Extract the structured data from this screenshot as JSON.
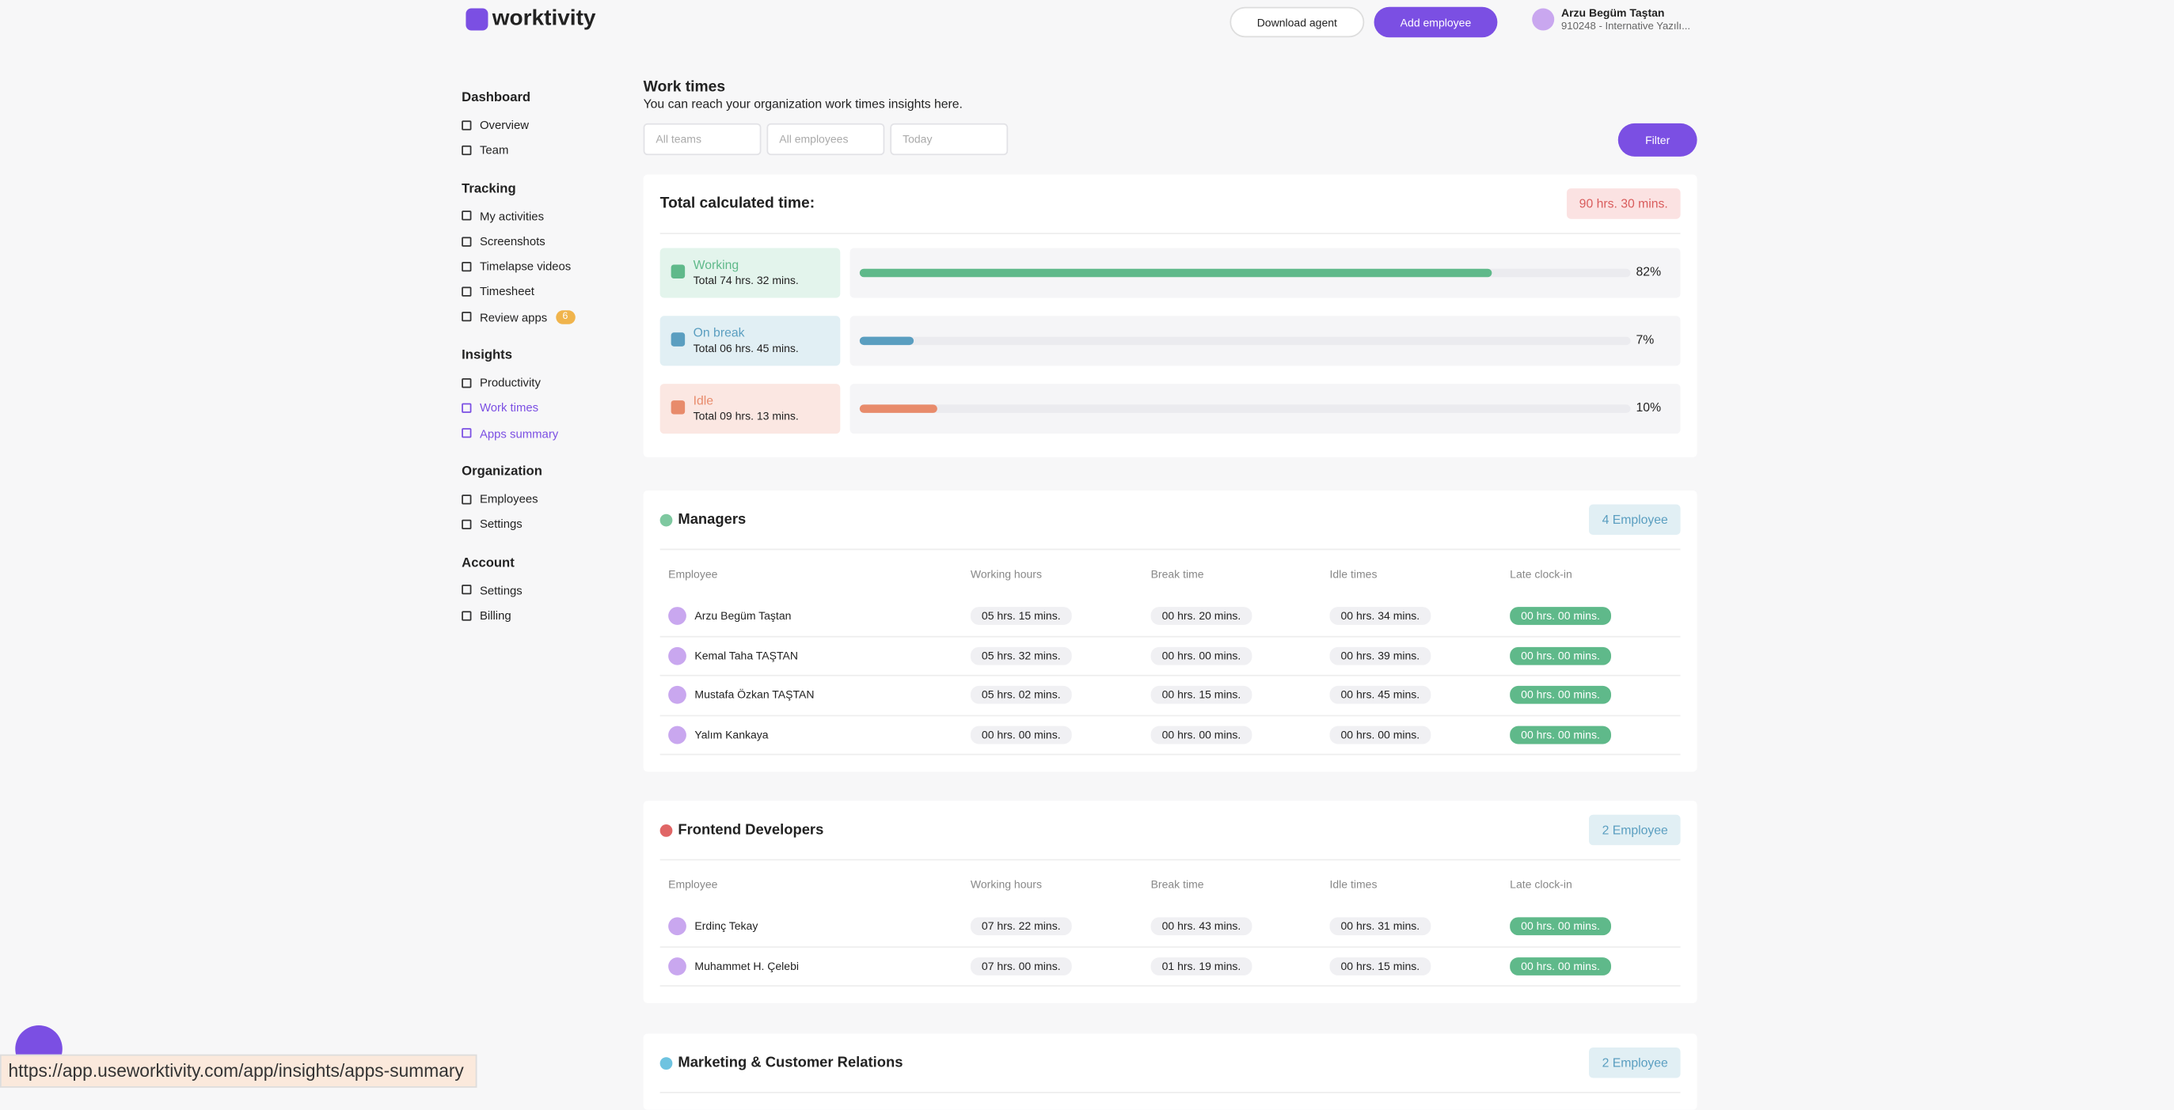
{
  "header": {
    "logo": "worktivity",
    "download": "Download agent",
    "add": "Add employee",
    "user_name": "Arzu Begüm Taştan",
    "user_org": "910248 - Internative Yazılı..."
  },
  "sidebar": [
    {
      "title": "Dashboard",
      "items": [
        {
          "label": "Overview"
        },
        {
          "label": "Team"
        }
      ]
    },
    {
      "title": "Tracking",
      "items": [
        {
          "label": "My activities"
        },
        {
          "label": "Screenshots"
        },
        {
          "label": "Timelapse videos"
        },
        {
          "label": "Timesheet"
        },
        {
          "label": "Review apps",
          "badge": "6"
        }
      ]
    },
    {
      "title": "Insights",
      "items": [
        {
          "label": "Productivity"
        },
        {
          "label": "Work times",
          "active": true
        },
        {
          "label": "Apps summary",
          "active": true
        }
      ]
    },
    {
      "title": "Organization",
      "items": [
        {
          "label": "Employees"
        },
        {
          "label": "Settings"
        }
      ]
    },
    {
      "title": "Account",
      "items": [
        {
          "label": "Settings"
        },
        {
          "label": "Billing"
        }
      ]
    }
  ],
  "page": {
    "title": "Work times",
    "subtitle": "You can reach your organization work times insights here.",
    "filters": [
      "All teams",
      "All employees",
      "Today"
    ],
    "filter_button": "Filter"
  },
  "summary": {
    "title": "Total calculated time:",
    "total": "90 hrs. 30 mins.",
    "rows": [
      {
        "name": "Working",
        "total": "Total 74 hrs. 32 mins.",
        "percent": 82,
        "percent_label": "82%",
        "color": "#5fb98a",
        "bg": "#e3f4ec"
      },
      {
        "name": "On break",
        "total": "Total 06 hrs. 45 mins.",
        "percent": 7,
        "percent_label": "7%",
        "color": "#5a9ec0",
        "bg": "#e1eff4"
      },
      {
        "name": "Idle",
        "total": "Total 09 hrs. 13 mins.",
        "percent": 10,
        "percent_label": "10%",
        "color": "#e88b6b",
        "bg": "#fbe7e2"
      }
    ]
  },
  "columns": [
    "Employee",
    "Working hours",
    "Break time",
    "Idle times",
    "Late clock-in"
  ],
  "teams": [
    {
      "name": "Managers",
      "count": "4 Employee",
      "color": "#7ec8a0",
      "rows": [
        [
          "Arzu Begüm Taştan",
          "05 hrs. 15 mins.",
          "00 hrs. 20 mins.",
          "00 hrs. 34 mins.",
          "00 hrs. 00 mins."
        ],
        [
          "Kemal Taha TAŞTAN",
          "05 hrs. 32 mins.",
          "00 hrs. 00 mins.",
          "00 hrs. 39 mins.",
          "00 hrs. 00 mins."
        ],
        [
          "Mustafa Özkan TAŞTAN",
          "05 hrs. 02 mins.",
          "00 hrs. 15 mins.",
          "00 hrs. 45 mins.",
          "00 hrs. 00 mins."
        ],
        [
          "Yalım Kankaya",
          "00 hrs. 00 mins.",
          "00 hrs. 00 mins.",
          "00 hrs. 00 mins.",
          "00 hrs. 00 mins."
        ]
      ]
    },
    {
      "name": "Frontend Developers",
      "count": "2 Employee",
      "color": "#e06666",
      "rows": [
        [
          "Erdinç Tekay",
          "07 hrs. 22 mins.",
          "00 hrs. 43 mins.",
          "00 hrs. 31 mins.",
          "00 hrs. 00 mins."
        ],
        [
          "Muhammet H. Çelebi",
          "07 hrs. 00 mins.",
          "01 hrs. 19 mins.",
          "00 hrs. 15 mins.",
          "00 hrs. 00 mins."
        ]
      ]
    },
    {
      "name": "Marketing & Customer Relations",
      "count": "2 Employee",
      "color": "#6ec3e0",
      "rows": []
    }
  ],
  "status_url": "https://app.useworktivity.com/app/insights/apps-summary"
}
